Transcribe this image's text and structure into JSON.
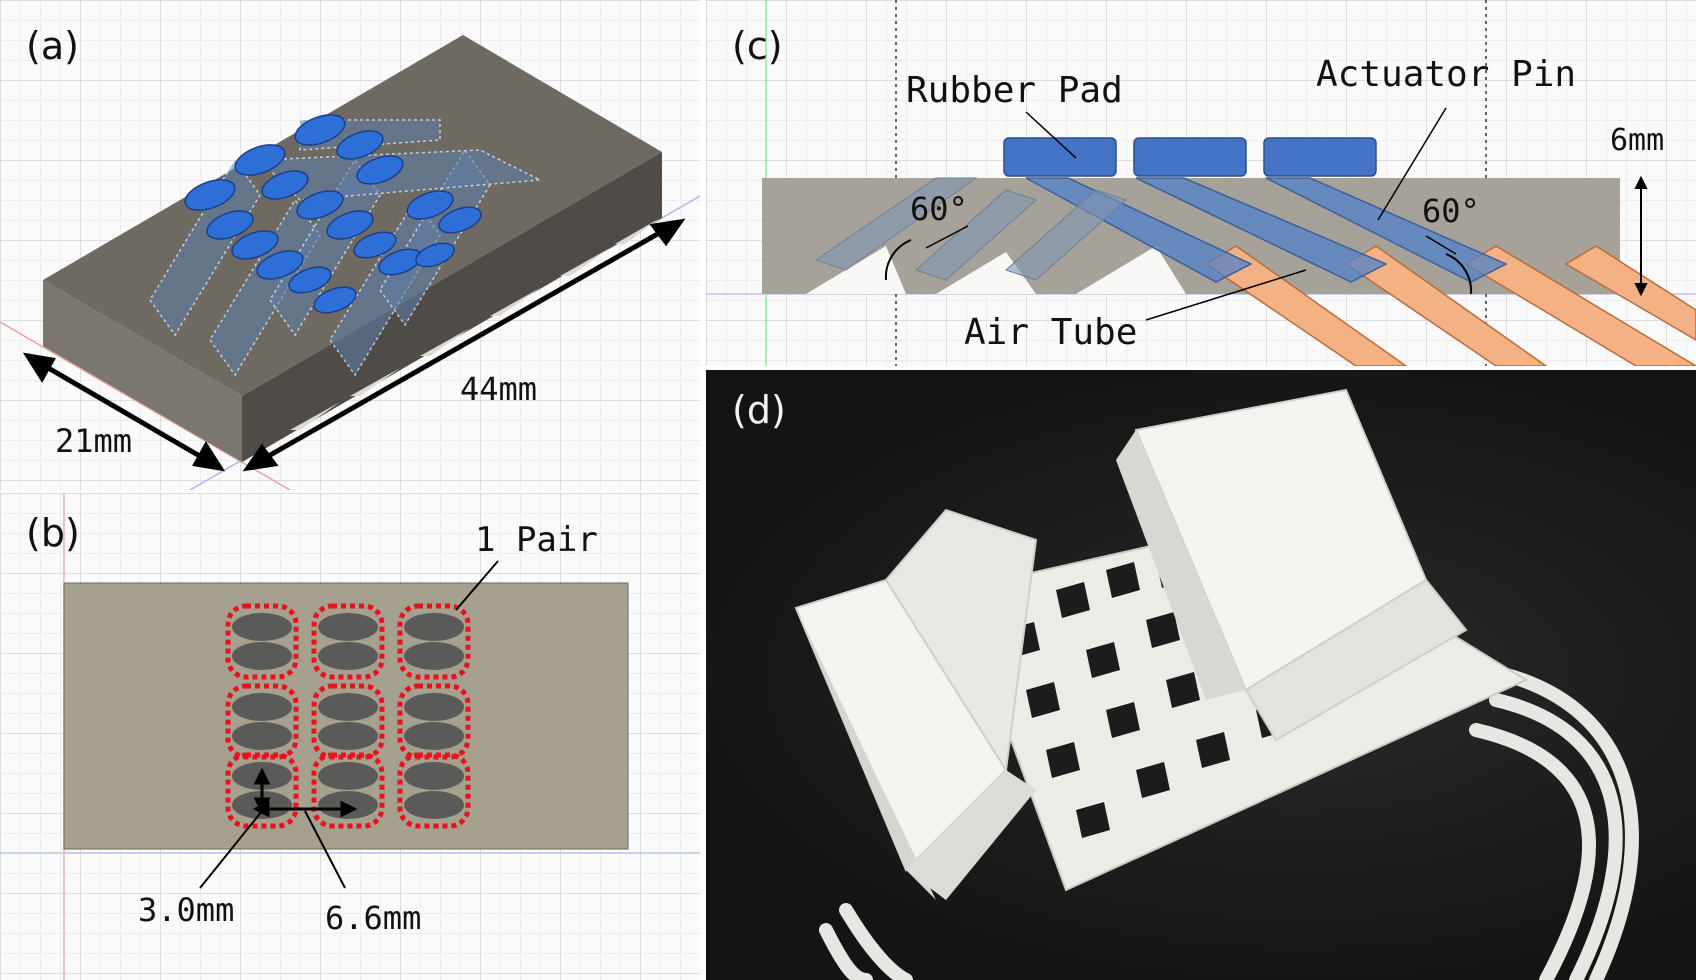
{
  "panels": {
    "a": {
      "label": "(a)",
      "dim_width": "21mm",
      "dim_length": "44mm"
    },
    "b": {
      "label": "(b)",
      "pair_label": "1 Pair",
      "dim_pitch_small": "3.0mm",
      "dim_pitch_large": "6.6mm"
    },
    "c": {
      "label": "(c)",
      "rubber_pad": "Rubber Pad",
      "actuator_pin": "Actuator Pin",
      "air_tube": "Air Tube",
      "angle_left": "60°",
      "angle_right": "60°",
      "height": "6mm"
    },
    "d": {
      "label": "(d)"
    }
  },
  "colors": {
    "body_gray": "#79756c",
    "body_top": "#66625a",
    "pin_blue": "#4472c4",
    "tube_orange": "#f4b183",
    "pair_outline": "#e8121e",
    "photo_bg": "#1a1a1a",
    "pad_black": "#1c1c1c",
    "print_white": "#f3f3f0"
  }
}
